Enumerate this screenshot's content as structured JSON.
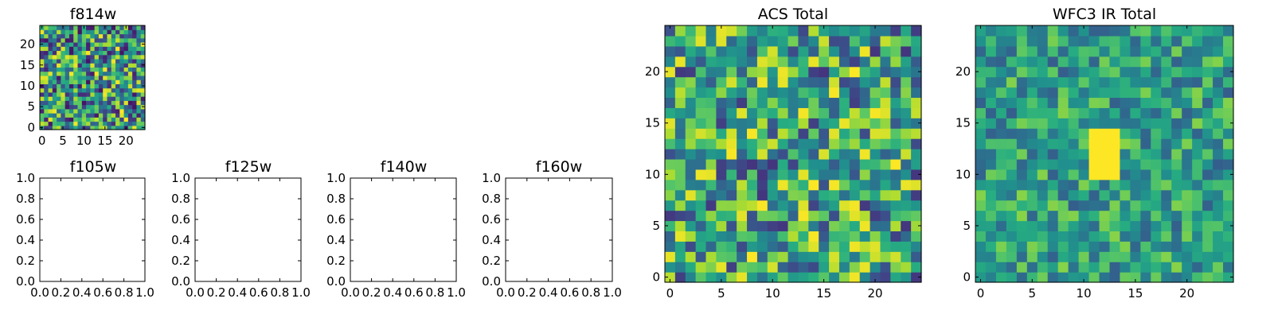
{
  "figure": {
    "background": "#ffffff",
    "colormap": "viridis"
  },
  "chart_data": [
    {
      "type": "heatmap",
      "title": "f814w",
      "grid_size": 25,
      "seed": 814,
      "noise": [
        0.05,
        1.0
      ],
      "spot": null,
      "xlim": [
        -0.5,
        24.5
      ],
      "ylim": [
        -0.5,
        24.5
      ],
      "xticks": [
        0,
        5,
        10,
        15,
        20
      ],
      "yticks": [
        0,
        5,
        10,
        15,
        20
      ]
    },
    {
      "type": "heatmap",
      "title": "f105w",
      "empty": true,
      "xlim": [
        0,
        1
      ],
      "ylim": [
        0,
        1
      ],
      "xticks": [
        "0.0",
        "0.2",
        "0.4",
        "0.6",
        "0.8",
        "1.0"
      ],
      "yticks": [
        "0.0",
        "0.2",
        "0.4",
        "0.6",
        "0.8",
        "1.0"
      ]
    },
    {
      "type": "heatmap",
      "title": "f125w",
      "empty": true,
      "xlim": [
        0,
        1
      ],
      "ylim": [
        0,
        1
      ],
      "xticks": [
        "0.0",
        "0.2",
        "0.4",
        "0.6",
        "0.8",
        "1.0"
      ],
      "yticks": [
        "0.0",
        "0.2",
        "0.4",
        "0.6",
        "0.8",
        "1.0"
      ]
    },
    {
      "type": "heatmap",
      "title": "f140w",
      "empty": true,
      "xlim": [
        0,
        1
      ],
      "ylim": [
        0,
        1
      ],
      "xticks": [
        "0.0",
        "0.2",
        "0.4",
        "0.6",
        "0.8",
        "1.0"
      ],
      "yticks": [
        "0.0",
        "0.2",
        "0.4",
        "0.6",
        "0.8",
        "1.0"
      ]
    },
    {
      "type": "heatmap",
      "title": "f160w",
      "empty": true,
      "xlim": [
        0,
        1
      ],
      "ylim": [
        0,
        1
      ],
      "xticks": [
        "0.0",
        "0.2",
        "0.4",
        "0.6",
        "0.8",
        "1.0"
      ],
      "yticks": [
        "0.0",
        "0.2",
        "0.4",
        "0.6",
        "0.8",
        "1.0"
      ]
    },
    {
      "type": "heatmap",
      "title": "ACS Total",
      "grid_size": 25,
      "seed": 4242,
      "noise": [
        0.15,
        1.0
      ],
      "spot": null,
      "xlim": [
        -0.5,
        24.5
      ],
      "ylim": [
        -0.5,
        24.5
      ],
      "xticks": [
        0,
        5,
        10,
        15,
        20
      ],
      "yticks": [
        0,
        5,
        10,
        15,
        20
      ]
    },
    {
      "type": "heatmap",
      "title": "WFC3 IR Total",
      "grid_size": 25,
      "seed": 3131,
      "noise": [
        0.3,
        0.82
      ],
      "spot": {
        "x0": 11,
        "x1": 13,
        "y0": 10,
        "y1": 14,
        "value": 1.0
      },
      "xlim": [
        -0.5,
        24.5
      ],
      "ylim": [
        -0.5,
        24.5
      ],
      "xticks": [
        0,
        5,
        10,
        15,
        20
      ],
      "yticks": [
        0,
        5,
        10,
        15,
        20
      ]
    }
  ]
}
